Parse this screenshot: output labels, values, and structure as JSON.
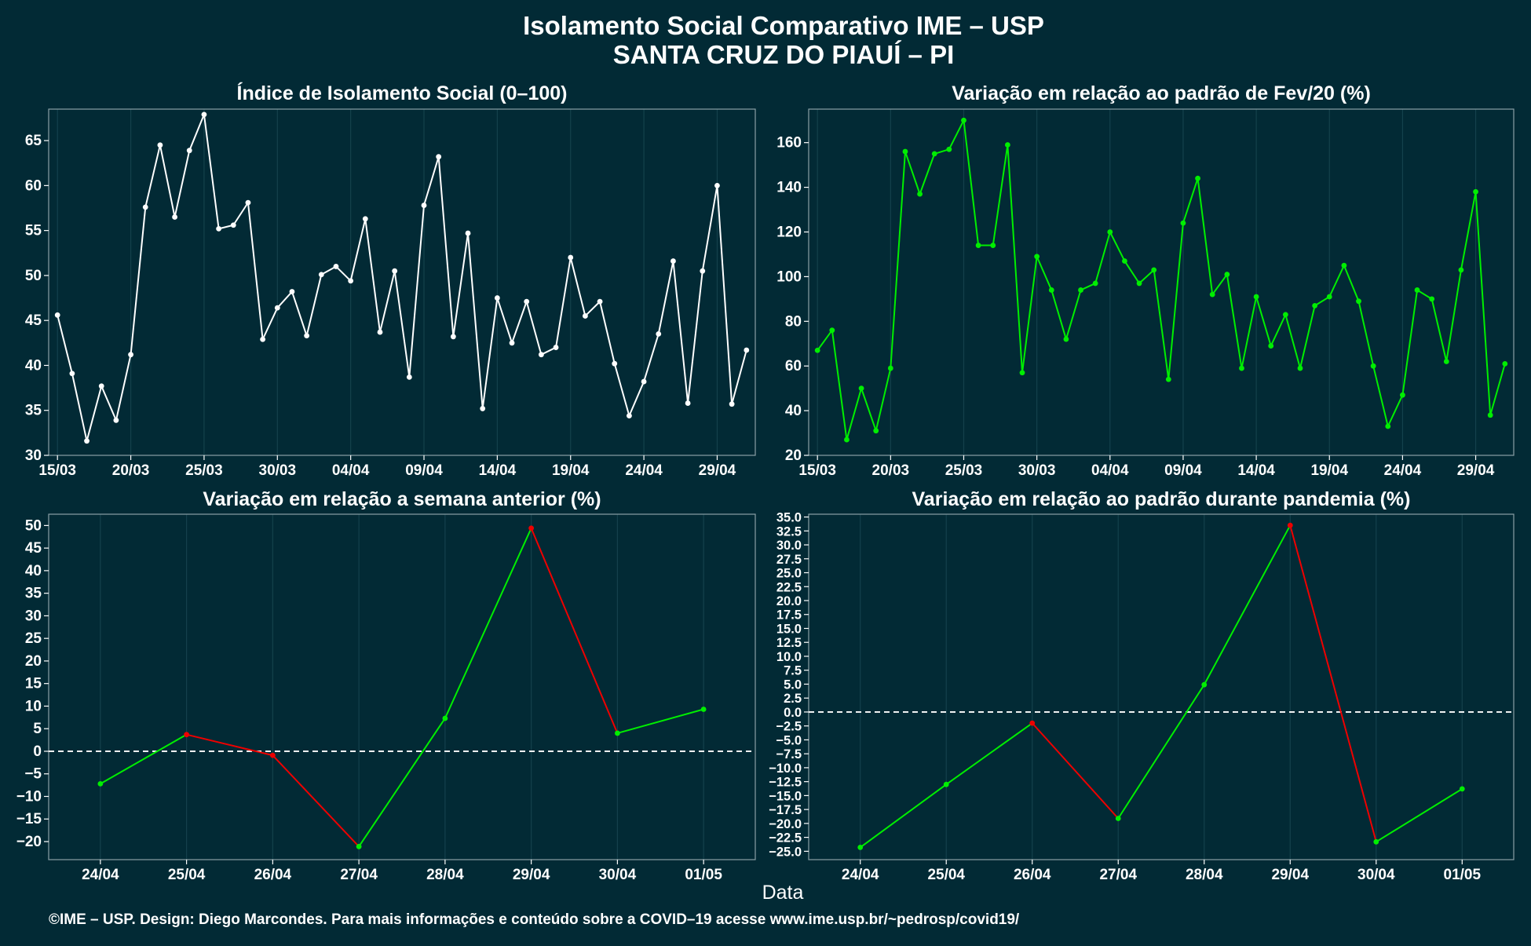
{
  "title_line1": "Isolamento Social Comparativo IME – USP",
  "title_line2": "SANTA CRUZ DO PIAUÍ – PI",
  "xlabel": "Data",
  "footer": "©IME – USP. Design: Diego Marcondes. Para mais informações e conteúdo sobre a COVID–19 acesse www.ime.usp.br/~pedrosp/covid19/",
  "colors": {
    "background": "#022a35",
    "white_series": "#ffffff",
    "green": "#00ee00",
    "red": "#ee0000",
    "grid": "#14414c"
  },
  "chart_data": [
    {
      "id": "isolamento",
      "type": "line",
      "title": "Índice de Isolamento Social (0–100)",
      "x_start": "15/03",
      "x_tick_labels": [
        "15/03",
        "20/03",
        "25/03",
        "30/03",
        "04/04",
        "09/04",
        "14/04",
        "19/04",
        "24/04",
        "29/04"
      ],
      "ylim": [
        30,
        68.5
      ],
      "y_ticks": [
        30,
        35,
        40,
        45,
        50,
        55,
        60,
        65
      ],
      "series": [
        {
          "color": "white",
          "values": [
            45.6,
            39.1,
            31.6,
            37.7,
            33.9,
            41.2,
            57.6,
            64.5,
            56.5,
            63.9,
            67.9,
            55.2,
            55.6,
            58.1,
            42.9,
            46.4,
            48.2,
            43.3,
            50.1,
            51.0,
            49.4,
            56.3,
            43.7,
            50.5,
            38.7,
            57.8,
            63.2,
            43.2,
            54.7,
            35.2,
            47.5,
            42.5,
            47.1,
            41.2,
            42.0,
            52.0,
            45.5,
            47.1,
            40.2,
            34.4,
            38.2,
            43.5,
            51.6,
            35.8,
            50.5,
            60.0,
            35.7,
            41.7
          ]
        }
      ]
    },
    {
      "id": "fev20",
      "type": "line",
      "title": "Variação em relação ao padrão de Fev/20 (%)",
      "x_start": "15/03",
      "x_tick_labels": [
        "15/03",
        "20/03",
        "25/03",
        "30/03",
        "04/04",
        "09/04",
        "14/04",
        "19/04",
        "24/04",
        "29/04"
      ],
      "ylim": [
        20,
        175
      ],
      "y_ticks": [
        20,
        40,
        60,
        80,
        100,
        120,
        140,
        160
      ],
      "series": [
        {
          "color": "green",
          "values": [
            67,
            76,
            27,
            50,
            31,
            59,
            156,
            137,
            155,
            157,
            170,
            114,
            114,
            159,
            57,
            109,
            94,
            72,
            94,
            97,
            120,
            107,
            97,
            103,
            54,
            124,
            144,
            92,
            101,
            59,
            91,
            69,
            83,
            59,
            87,
            91,
            105,
            89,
            60,
            33,
            47,
            94,
            90,
            62,
            103,
            138,
            38,
            61
          ]
        }
      ]
    },
    {
      "id": "semana",
      "type": "line",
      "title": "Variação em relação a semana anterior (%)",
      "categories": [
        "24/04",
        "25/04",
        "26/04",
        "27/04",
        "28/04",
        "29/04",
        "30/04",
        "01/05"
      ],
      "ylim": [
        -24,
        52.5
      ],
      "y_ticks": [
        -20,
        -15,
        -10,
        -5,
        0,
        5,
        10,
        15,
        20,
        25,
        30,
        35,
        40,
        45,
        50
      ],
      "reference_line": 0,
      "series": [
        {
          "color": "segment-sign",
          "values": [
            -7.2,
            3.7,
            -0.9,
            -21.1,
            7.3,
            49.4,
            4.0,
            9.3
          ]
        }
      ]
    },
    {
      "id": "pandemia",
      "type": "line",
      "title": "Variação em relação ao padrão durante pandemia (%)",
      "categories": [
        "24/04",
        "25/04",
        "26/04",
        "27/04",
        "28/04",
        "29/04",
        "30/04",
        "01/05"
      ],
      "ylim": [
        -26.5,
        35.5
      ],
      "y_ticks": [
        -25.0,
        -22.5,
        -20.0,
        -17.5,
        -15.0,
        -12.5,
        -10.0,
        -7.5,
        -5.0,
        -2.5,
        0.0,
        2.5,
        5.0,
        7.5,
        10.0,
        12.5,
        15.0,
        17.5,
        20.0,
        22.5,
        25.0,
        27.5,
        30.0,
        32.5,
        35.0
      ],
      "reference_line": 0,
      "series": [
        {
          "color": "segment-sign",
          "values": [
            -24.3,
            -13.0,
            -2.0,
            -19.1,
            4.9,
            33.5,
            -23.3,
            -13.8
          ]
        }
      ]
    }
  ]
}
